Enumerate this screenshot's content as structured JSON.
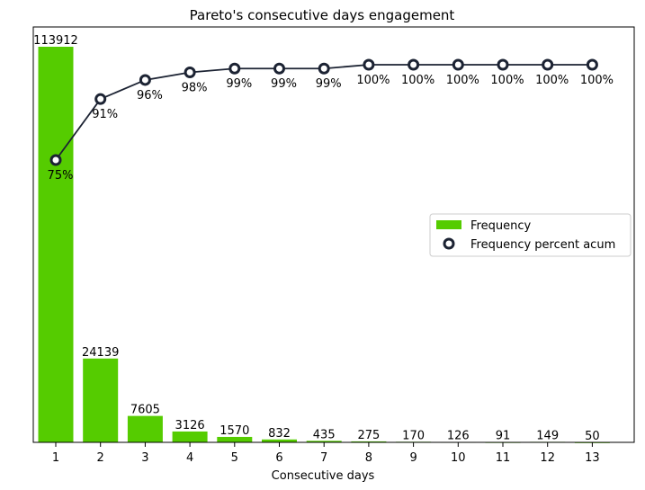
{
  "chart_data": {
    "type": "bar",
    "title": "Pareto's consecutive days engagement",
    "xlabel": "Consecutive days",
    "ylabel": "",
    "categories": [
      "1",
      "2",
      "3",
      "4",
      "5",
      "6",
      "7",
      "8",
      "9",
      "10",
      "11",
      "12",
      "13"
    ],
    "series": [
      {
        "name": "Frequency",
        "type": "bar",
        "color": "#55cc00",
        "values": [
          113912,
          24139,
          7605,
          3126,
          1570,
          832,
          435,
          275,
          170,
          126,
          91,
          149,
          50
        ]
      },
      {
        "name": "Frequency percent acum",
        "type": "line",
        "color": "#1c2333",
        "values": [
          75,
          91,
          96,
          98,
          99,
          99,
          99,
          100,
          100,
          100,
          100,
          100,
          100
        ],
        "labels": [
          "75%",
          "91%",
          "96%",
          "98%",
          "99%",
          "99%",
          "99%",
          "100%",
          "100%",
          "100%",
          "100%",
          "100%",
          "100%"
        ]
      }
    ],
    "bar_labels": [
      "113912",
      "24139",
      "7605",
      "3126",
      "1570",
      "832",
      "435",
      "275",
      "170",
      "126",
      "91",
      "149",
      "50"
    ],
    "ylim_bars": [
      0,
      113912
    ],
    "ylim_line": [
      75,
      100
    ],
    "grid": false,
    "legend_position": "center-right"
  }
}
